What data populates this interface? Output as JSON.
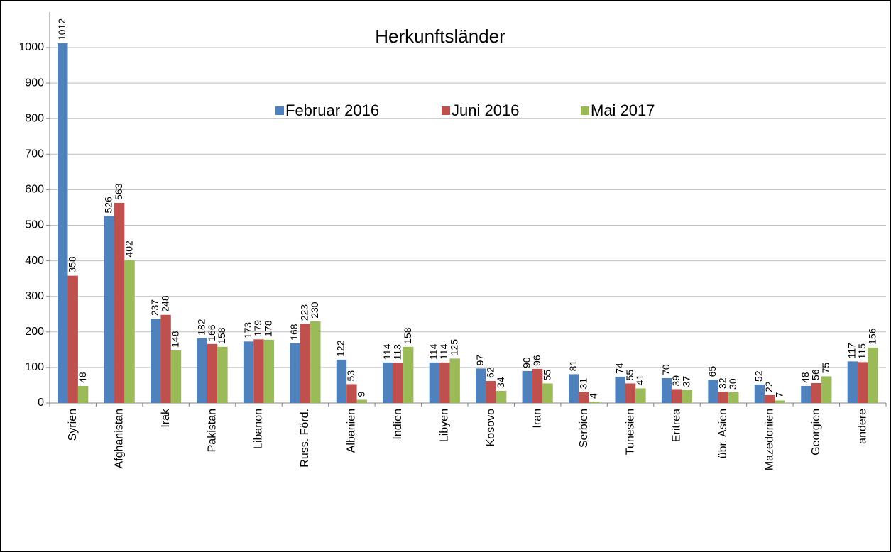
{
  "chart_data": {
    "type": "bar",
    "title": "Herkunftsländer",
    "categories": [
      "Syrien",
      "Afghanistan",
      "Irak",
      "Pakistan",
      "Libanon",
      "Russ. Förd.",
      "Albanien",
      "Indien",
      "Libyen",
      "Kosovo",
      "Iran",
      "Serbien",
      "Tunesien",
      "Eritrea",
      "übr. Asien",
      "Mazedonien",
      "Georgien",
      "andere"
    ],
    "series": [
      {
        "name": "Februar 2016",
        "color": "#4f81bd",
        "values": [
          1012,
          526,
          237,
          182,
          173,
          168,
          122,
          114,
          114,
          97,
          90,
          81,
          74,
          70,
          65,
          52,
          48,
          117
        ]
      },
      {
        "name": "Juni 2016",
        "color": "#c0504d",
        "values": [
          358,
          563,
          248,
          166,
          179,
          223,
          53,
          113,
          114,
          62,
          96,
          31,
          55,
          39,
          32,
          22,
          56,
          115
        ]
      },
      {
        "name": "Mai 2017",
        "color": "#9bbb59",
        "values": [
          48,
          402,
          148,
          158,
          178,
          230,
          9,
          158,
          125,
          34,
          55,
          4,
          41,
          37,
          30,
          7,
          75,
          156
        ]
      }
    ],
    "ylim": [
      0,
      1100
    ],
    "yticks": [
      0,
      100,
      200,
      300,
      400,
      500,
      600,
      700,
      800,
      900,
      1000
    ],
    "grid": true,
    "legend": "top"
  }
}
